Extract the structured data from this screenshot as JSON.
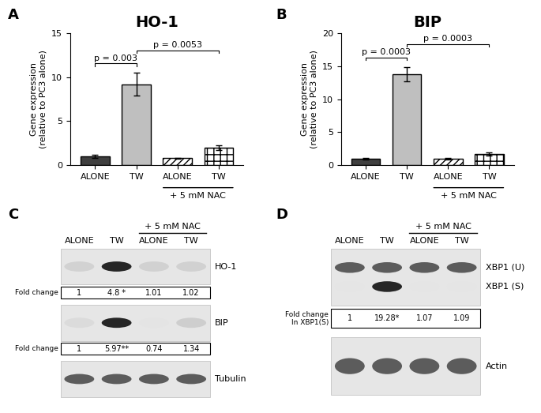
{
  "chart_data": [
    {
      "type": "bar",
      "panel": "A",
      "title": "HO-1",
      "y_label": "Gene expression\n(relative to PC3 alone)",
      "categories": [
        "ALONE",
        "TW",
        "ALONE",
        "TW"
      ],
      "values": [
        1.0,
        9.2,
        0.8,
        2.0
      ],
      "errors": [
        0.15,
        1.3,
        0.05,
        0.3
      ],
      "colors": [
        "#3f3f3f",
        "#bfbfbf",
        "#ffffff",
        "#ffffff"
      ],
      "ylim": [
        0,
        15
      ],
      "yticks": [
        0,
        5,
        10,
        15
      ],
      "annotations": [
        {
          "text": "p = 0.003",
          "between": [
            0,
            1
          ]
        },
        {
          "text": "p = 0.0053",
          "between": [
            1,
            3
          ]
        }
      ],
      "groups": [
        {
          "text": "+ 5 mM NAC",
          "categories": [
            2,
            3
          ]
        }
      ]
    },
    {
      "type": "bar",
      "panel": "B",
      "title": "BIP",
      "y_label": "Gene expression\n(relative to PC3 alone)",
      "categories": [
        "ALONE",
        "TW",
        "ALONE",
        "TW"
      ],
      "values": [
        1.0,
        13.8,
        1.0,
        1.7
      ],
      "errors": [
        0.1,
        1.1,
        0.1,
        0.2
      ],
      "colors": [
        "#3f3f3f",
        "#bfbfbf",
        "#ffffff",
        "#ffffff"
      ],
      "ylim": [
        0,
        20
      ],
      "yticks": [
        0,
        5,
        10,
        15,
        20
      ],
      "annotations": [
        {
          "text": "p = 0.0003",
          "between": [
            0,
            1
          ]
        },
        {
          "text": "p = 0.0003",
          "between": [
            1,
            3
          ]
        }
      ],
      "groups": [
        {
          "text": "+ 5 mM NAC",
          "categories": [
            2,
            3
          ]
        }
      ]
    }
  ],
  "blots": [
    {
      "panel": "C",
      "lanes": [
        "ALONE",
        "TW",
        "ALONE",
        "TW"
      ],
      "groups": [
        {
          "text": "+ 5 mM NAC",
          "lanes": [
            2,
            3
          ]
        }
      ],
      "rows": [
        {
          "bands": [
            {
              "label": "HO-1",
              "fold_label": "Fold change",
              "fold_change": [
                1,
                {
                  "value": 4.8,
                  "label": "4.8 *"
                },
                1.01,
                1.02
              ]
            }
          ]
        },
        {
          "bands": [
            {
              "label": "BIP",
              "fold_label": "Fold change",
              "fold_change": [
                1,
                {
                  "value": 5.97,
                  "label": "5.97**"
                },
                0.74,
                1.34
              ]
            }
          ]
        },
        {
          "bands": [
            {
              "label": "Tubulin"
            }
          ]
        }
      ]
    },
    {
      "panel": "D",
      "lanes": [
        "ALONE",
        "TW",
        "ALONE",
        "TW"
      ],
      "groups": [
        {
          "text": "+ 5 mM NAC",
          "lanes": [
            2,
            3
          ]
        }
      ],
      "rows": [
        {
          "bands": [
            {
              "label": "XBP1 (U)"
            },
            {
              "label": "XBP1 (S)",
              "fold_label": "Fold change\nIn XBP1(S)",
              "fold_change": [
                1,
                {
                  "value": 19.28,
                  "label": "19.28*"
                },
                1.07,
                1.09
              ]
            }
          ]
        },
        {
          "bands": [
            {
              "label": "Actin"
            }
          ]
        }
      ]
    }
  ]
}
